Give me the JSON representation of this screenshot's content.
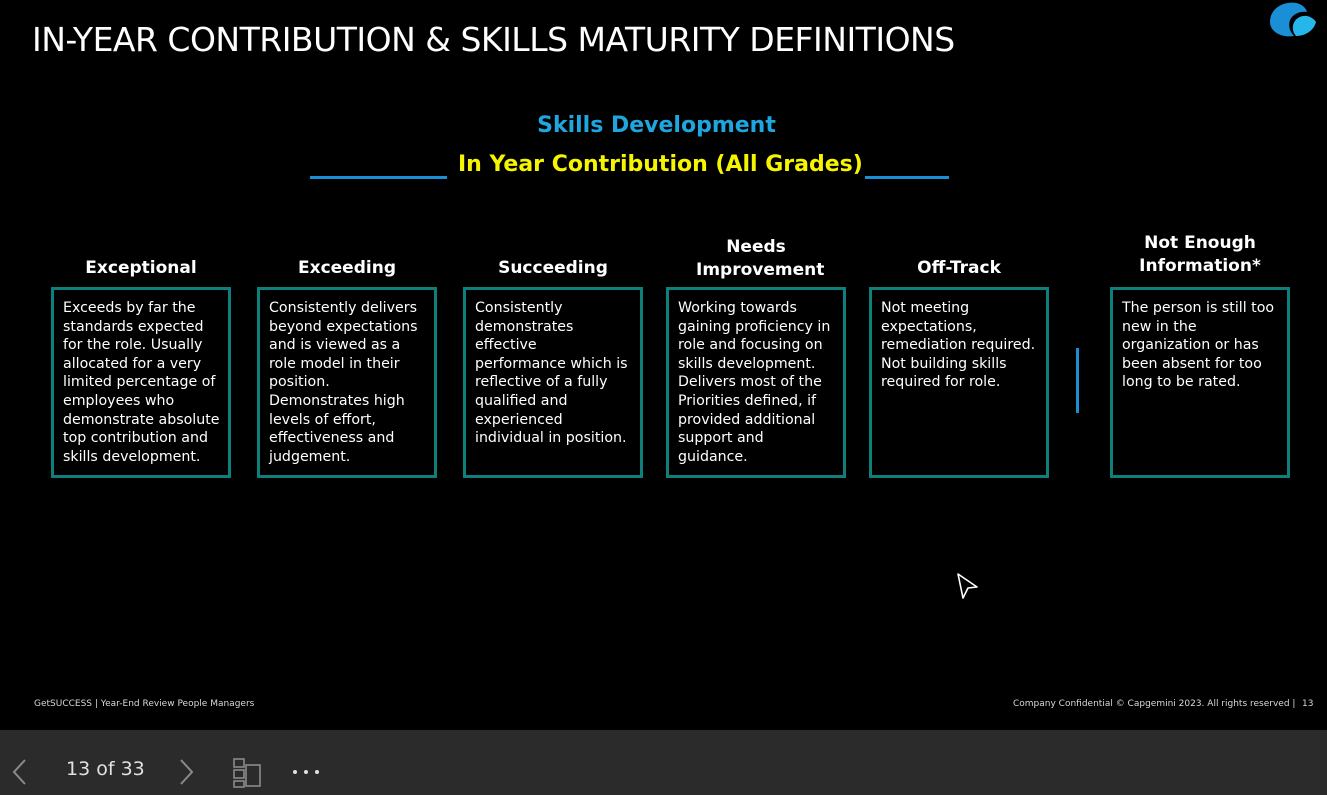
{
  "slide": {
    "title": "IN-YEAR CONTRIBUTION & SKILLS MATURITY DEFINITIONS",
    "subheading": "Skills Development",
    "heading": "In Year Contribution (All Grades)",
    "categories": [
      {
        "label": "Exceptional",
        "description": "Exceeds by far the standards expected for the role. Usually allocated for a very limited percentage of employees who demonstrate absolute top contribution and skills development."
      },
      {
        "label": "Exceeding",
        "description": "Consistently delivers beyond expectations and is viewed as a role model in their position. Demonstrates high levels of effort, effectiveness and judgement."
      },
      {
        "label": "Succeeding",
        "description": "Consistently demonstrates effective performance which is reflective of a fully qualified and experienced individual in position."
      },
      {
        "label": "Needs Improvement",
        "description": "Working towards gaining proficiency in role and focusing on skills development. Delivers most of the Priorities defined, if provided additional support and guidance."
      },
      {
        "label": "Off-Track",
        "description": "Not meeting expectations, remediation required. Not building skills required for role."
      },
      {
        "label": "Not Enough Information*",
        "description": "The person is  still too new in the organization or has been absent for too long to be rated."
      }
    ],
    "footer_left": "GetSUCCESS | Year-End Review People Managers",
    "footer_right": "Company Confidential © Capgemini 2023. All rights reserved |",
    "slide_number": "13"
  },
  "toolbar": {
    "prev_icon": "chevron-left-icon",
    "page_counter": "13 of 33",
    "next_icon": "chevron-right-icon",
    "thumbnails_icon": "thumbnails-icon",
    "more_icon": "more-icon"
  },
  "colors": {
    "background": "#000000",
    "accent_blue": "#1ea6e0",
    "heading_yellow": "#f5f500",
    "box_border": "#0e7f7a",
    "toolbar_bg": "#2b2b2b"
  }
}
